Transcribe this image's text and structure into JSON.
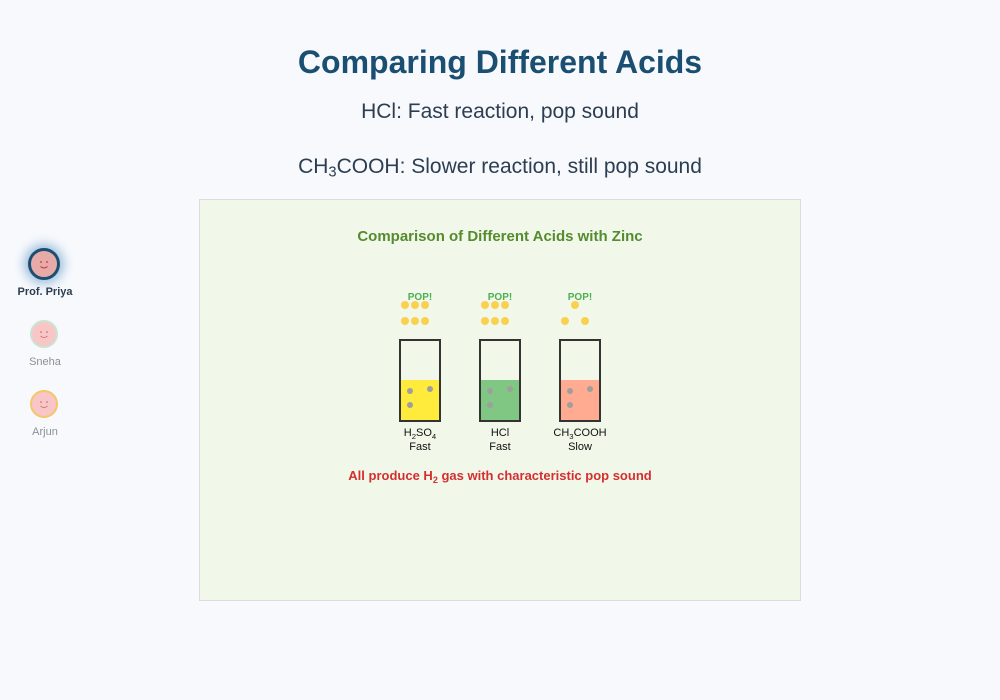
{
  "slide": {
    "title": "Comparing Different Acids",
    "line1": "HCl: Fast reaction, pop sound",
    "line2": {
      "prefix": "CH",
      "sub": "3",
      "suffix": "COOH: Slower reaction, still pop sound"
    }
  },
  "participants": [
    {
      "name": "Prof. Priya",
      "active": true
    },
    {
      "name": "Sneha",
      "active": false
    },
    {
      "name": "Arjun",
      "active": false
    }
  ],
  "diagram": {
    "title": "Comparison of Different Acids with Zinc",
    "pop_label": "POP!",
    "tubes": [
      {
        "formula": [
          [
            "H",
            ""
          ],
          [
            "2",
            "sub"
          ],
          [
            "SO",
            ""
          ],
          [
            "4",
            "sub"
          ]
        ],
        "rate": "Fast",
        "liquid_color": "#ffeb3b",
        "bubble_level": 1.0
      },
      {
        "formula": [
          [
            "HCl",
            ""
          ]
        ],
        "rate": "Fast",
        "liquid_color": "#81c784",
        "bubble_level": 1.0
      },
      {
        "formula": [
          [
            "CH",
            ""
          ],
          [
            "3",
            "sub"
          ],
          [
            "COOH",
            ""
          ]
        ],
        "rate": "Slow",
        "liquid_color": "#ffab91",
        "bubble_level": 0.5
      }
    ],
    "footer": {
      "prefix": "All produce H",
      "sub": "2",
      "suffix": " gas with characteristic pop sound"
    },
    "colors": {
      "title": "#558b2f",
      "pop": "#4caf50",
      "bubble": "#f9d14f",
      "zinc": "#9e9e9e",
      "footer": "#d32f2f"
    }
  }
}
